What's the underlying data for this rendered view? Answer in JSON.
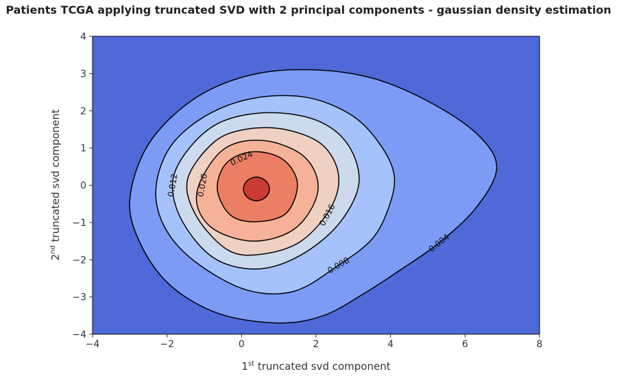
{
  "chart_data": {
    "type": "contour",
    "title": "Patients TCGA applying truncated SVD with 2 principal components - gaussian density estimation",
    "xlabel": {
      "prefix": "1",
      "sup": "st",
      "rest": " truncated svd component"
    },
    "ylabel": {
      "prefix": "2",
      "sup": "nd",
      "rest": " truncated svd component"
    },
    "xlim": [
      -4,
      8
    ],
    "ylim": [
      -4,
      4
    ],
    "x_ticks": [
      -4,
      -2,
      0,
      2,
      4,
      6,
      8
    ],
    "y_ticks": [
      -4,
      -3,
      -2,
      -1,
      0,
      1,
      2,
      3,
      4
    ],
    "x_tick_labels": [
      "−4",
      "−2",
      "0",
      "2",
      "4",
      "6",
      "8"
    ],
    "y_tick_labels": [
      "−4",
      "−3",
      "−2",
      "−1",
      "0",
      "1",
      "2",
      "3",
      "4"
    ],
    "colormap": "coolwarm",
    "background_color": "#4f69d8",
    "levels": [
      {
        "level": 0.004,
        "fill": "#7b9bf5",
        "label": "0.004"
      },
      {
        "level": 0.008,
        "fill": "#a6c2fd",
        "label": "0.008"
      },
      {
        "level": 0.012,
        "fill": "#cdd9ec",
        "label": "0.012"
      },
      {
        "level": 0.016,
        "fill": "#eed1c3",
        "label": "0.016"
      },
      {
        "level": 0.02,
        "fill": "#f6b296",
        "label": "0.020"
      },
      {
        "level": 0.024,
        "fill": "#ec7e64",
        "label": "0.024"
      },
      {
        "level": 0.028,
        "fill": "#c93b33",
        "label": ""
      }
    ],
    "contours": [
      {
        "level": 0.004,
        "points": [
          [
            -3.0,
            -0.4
          ],
          [
            -2.7,
            -1.6
          ],
          [
            -1.9,
            -2.7
          ],
          [
            -0.6,
            -3.45
          ],
          [
            1.0,
            -3.7
          ],
          [
            2.2,
            -3.5
          ],
          [
            3.3,
            -2.9
          ],
          [
            4.3,
            -2.25
          ],
          [
            5.3,
            -1.55
          ],
          [
            6.3,
            -0.6
          ],
          [
            6.85,
            0.45
          ],
          [
            6.4,
            1.3
          ],
          [
            5.2,
            2.15
          ],
          [
            3.6,
            2.85
          ],
          [
            1.9,
            3.1
          ],
          [
            0.2,
            2.95
          ],
          [
            -1.3,
            2.3
          ],
          [
            -2.5,
            1.1
          ]
        ]
      },
      {
        "level": 0.008,
        "points": [
          [
            -2.3,
            -0.1
          ],
          [
            -2.05,
            -1.15
          ],
          [
            -1.25,
            -2.05
          ],
          [
            0.1,
            -2.8
          ],
          [
            1.4,
            -2.85
          ],
          [
            2.6,
            -2.15
          ],
          [
            3.5,
            -1.45
          ],
          [
            3.95,
            -0.6
          ],
          [
            4.1,
            0.25
          ],
          [
            3.75,
            1.05
          ],
          [
            3.0,
            1.85
          ],
          [
            1.8,
            2.35
          ],
          [
            0.4,
            2.35
          ],
          [
            -0.9,
            1.9
          ],
          [
            -1.9,
            1.05
          ]
        ]
      },
      {
        "level": 0.012,
        "points": [
          [
            -1.85,
            0.1
          ],
          [
            -1.6,
            -0.95
          ],
          [
            -0.75,
            -1.95
          ],
          [
            0.4,
            -2.25
          ],
          [
            1.55,
            -1.9
          ],
          [
            2.6,
            -1.05
          ],
          [
            3.15,
            0.05
          ],
          [
            2.85,
            1.1
          ],
          [
            2.0,
            1.75
          ],
          [
            0.7,
            1.95
          ],
          [
            -0.55,
            1.7
          ],
          [
            -1.4,
            1.0
          ]
        ]
      },
      {
        "level": 0.016,
        "points": [
          [
            -1.45,
            0.15
          ],
          [
            -1.2,
            -0.85
          ],
          [
            -0.35,
            -1.75
          ],
          [
            0.55,
            -1.85
          ],
          [
            1.6,
            -1.5
          ],
          [
            2.4,
            -0.6
          ],
          [
            2.6,
            0.3
          ],
          [
            2.15,
            1.1
          ],
          [
            1.15,
            1.5
          ],
          [
            0.1,
            1.5
          ],
          [
            -0.75,
            1.15
          ]
        ]
      },
      {
        "level": 0.02,
        "points": [
          [
            -1.2,
            -0.2
          ],
          [
            -0.85,
            -1.1
          ],
          [
            0.3,
            -1.5
          ],
          [
            1.45,
            -1.15
          ],
          [
            2.05,
            -0.15
          ],
          [
            1.7,
            0.75
          ],
          [
            0.6,
            1.2
          ],
          [
            -0.5,
            0.95
          ]
        ]
      },
      {
        "level": 0.024,
        "points": [
          [
            -0.65,
            -0.1
          ],
          [
            -0.3,
            -0.8
          ],
          [
            0.4,
            -0.98
          ],
          [
            1.2,
            -0.75
          ],
          [
            1.5,
            0.05
          ],
          [
            1.1,
            0.7
          ],
          [
            0.3,
            0.9
          ],
          [
            -0.4,
            0.6
          ]
        ]
      },
      {
        "level": 0.028,
        "points": [
          [
            0.05,
            -0.1
          ],
          [
            0.15,
            -0.32
          ],
          [
            0.4,
            -0.42
          ],
          [
            0.65,
            -0.32
          ],
          [
            0.75,
            -0.1
          ],
          [
            0.65,
            0.12
          ],
          [
            0.4,
            0.22
          ],
          [
            0.15,
            0.12
          ]
        ]
      }
    ],
    "contour_labels": [
      {
        "text": "0.004",
        "x": 5.3,
        "y": -1.55,
        "angle": -38
      },
      {
        "text": "0.008",
        "x": 2.6,
        "y": -2.15,
        "angle": -30
      },
      {
        "text": "0.012",
        "x": -1.85,
        "y": 0.0,
        "angle": -80
      },
      {
        "text": "0.016",
        "x": 2.3,
        "y": -0.8,
        "angle": -62
      },
      {
        "text": "0.020",
        "x": -1.05,
        "y": 0.0,
        "angle": -80
      },
      {
        "text": "0.024",
        "x": 0.0,
        "y": 0.72,
        "angle": -25
      }
    ]
  }
}
